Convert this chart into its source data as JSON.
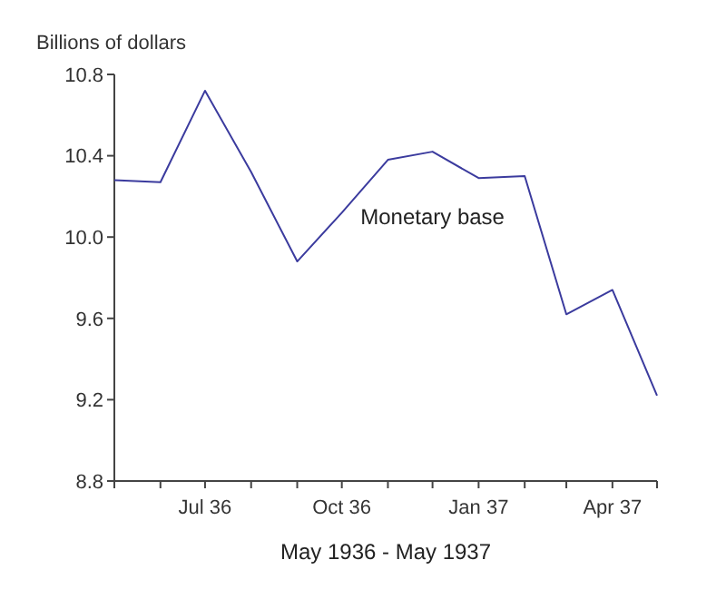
{
  "chart_data": {
    "type": "line",
    "xlabel": "May 1936 - May 1937",
    "ylabel": "Billions of dollars",
    "x": [
      "1936-05",
      "1936-06",
      "1936-07",
      "1936-08",
      "1936-09",
      "1936-10",
      "1936-11",
      "1936-12",
      "1937-01",
      "1937-02",
      "1937-03",
      "1937-04",
      "1937-05"
    ],
    "series": [
      {
        "name": "Monetary base",
        "color": "#3b3b9e",
        "values": [
          10.28,
          10.27,
          10.72,
          10.32,
          9.88,
          10.12,
          10.38,
          10.42,
          10.29,
          10.3,
          9.62,
          9.74,
          9.22
        ]
      }
    ],
    "xlim": [
      "1936-05",
      "1937-05"
    ],
    "xticks": [
      {
        "value": "1936-05",
        "label": null
      },
      {
        "value": "1936-06",
        "label": null
      },
      {
        "value": "1936-07",
        "label": "Jul 36"
      },
      {
        "value": "1936-08",
        "label": null
      },
      {
        "value": "1936-09",
        "label": null
      },
      {
        "value": "1936-10",
        "label": "Oct 36"
      },
      {
        "value": "1936-11",
        "label": null
      },
      {
        "value": "1936-12",
        "label": null
      },
      {
        "value": "1937-01",
        "label": "Jan 37"
      },
      {
        "value": "1937-02",
        "label": null
      },
      {
        "value": "1937-03",
        "label": null
      },
      {
        "value": "1937-04",
        "label": "Apr 37"
      },
      {
        "value": "1937-05",
        "label": null
      }
    ],
    "ylim": [
      8.8,
      10.8
    ],
    "yticks": [
      8.8,
      9.2,
      9.6,
      {
        "value": 10,
        "label": "10.0"
      },
      10.4,
      10.8
    ],
    "grid": false,
    "marker": "none",
    "line_style": "solid"
  }
}
